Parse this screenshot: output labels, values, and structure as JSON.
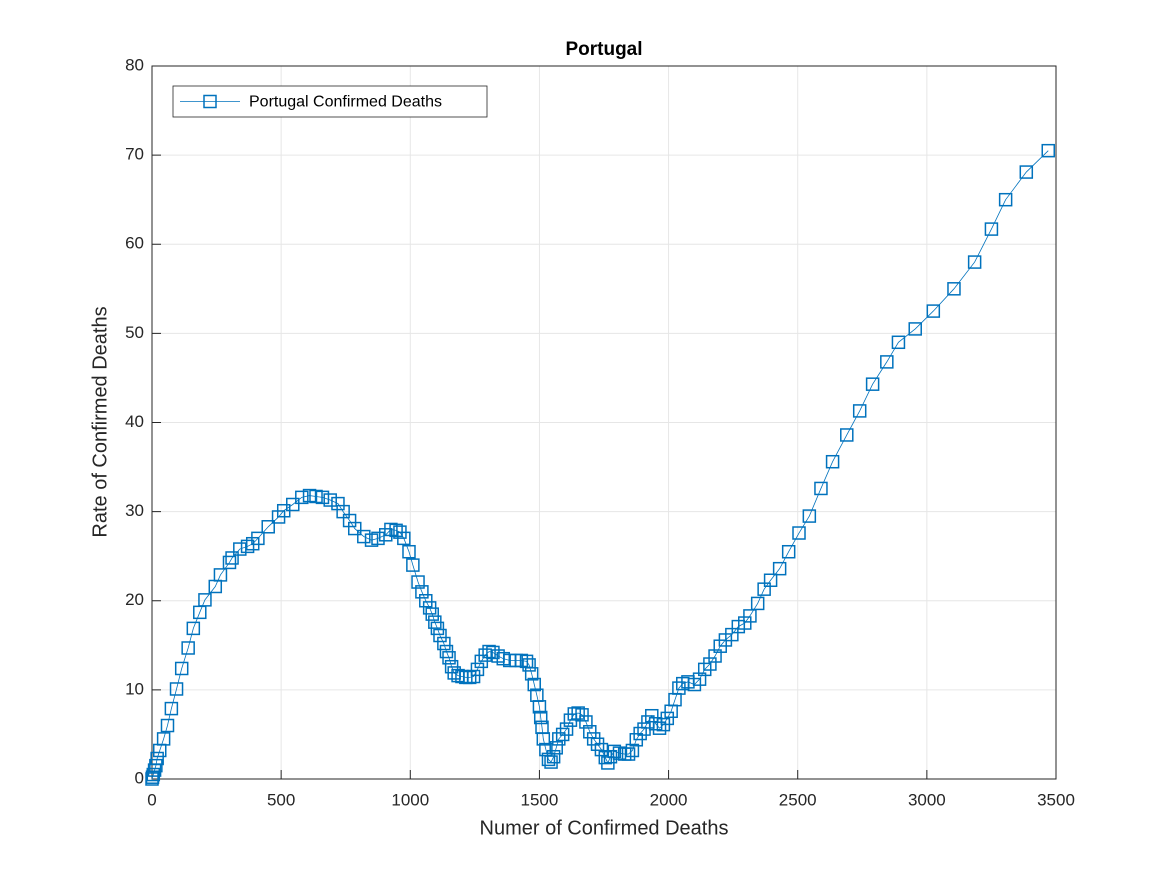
{
  "chart_data": {
    "type": "line",
    "title": "Portugal",
    "xlabel": "Numer of Confirmed Deaths",
    "ylabel": "Rate of Confirmed Deaths",
    "x": [
      0,
      2,
      5,
      10,
      15,
      20,
      30,
      45,
      60,
      75,
      95,
      115,
      140,
      160,
      185,
      205,
      245,
      265,
      300,
      310,
      340,
      370,
      390,
      410,
      450,
      490,
      510,
      545,
      580,
      610,
      635,
      660,
      690,
      720,
      740,
      765,
      785,
      820,
      850,
      875,
      905,
      925,
      945,
      960,
      975,
      995,
      1010,
      1030,
      1045,
      1060,
      1075,
      1085,
      1095,
      1105,
      1115,
      1130,
      1140,
      1150,
      1160,
      1170,
      1185,
      1200,
      1215,
      1230,
      1245,
      1260,
      1275,
      1290,
      1305,
      1320,
      1340,
      1360,
      1385,
      1410,
      1430,
      1450,
      1460,
      1470,
      1480,
      1490,
      1500,
      1505,
      1510,
      1515,
      1525,
      1535,
      1545,
      1555,
      1565,
      1575,
      1590,
      1605,
      1620,
      1635,
      1650,
      1665,
      1680,
      1695,
      1710,
      1725,
      1740,
      1755,
      1765,
      1775,
      1790,
      1810,
      1830,
      1845,
      1860,
      1875,
      1890,
      1905,
      1920,
      1935,
      1950,
      1965,
      1980,
      1995,
      2010,
      2025,
      2040,
      2055,
      2075,
      2100,
      2120,
      2140,
      2160,
      2180,
      2200,
      2220,
      2245,
      2270,
      2295,
      2315,
      2345,
      2370,
      2395,
      2430,
      2465,
      2505,
      2545,
      2590,
      2635,
      2690,
      2740,
      2790,
      2845,
      2890,
      2955,
      3025,
      3105,
      3185,
      3250,
      3305,
      3385,
      3470
    ],
    "series": [
      {
        "name": "Portugal Confirmed Deaths",
        "color": "#0072bd",
        "values": [
          0,
          0.2,
          0.5,
          1,
          1.5,
          2.3,
          3.2,
          4.5,
          6,
          7.9,
          10.1,
          12.4,
          14.7,
          16.9,
          18.7,
          20.1,
          21.6,
          22.9,
          24.3,
          24.8,
          25.8,
          26.1,
          26.4,
          27,
          28.3,
          29.4,
          30.1,
          30.8,
          31.6,
          31.8,
          31.7,
          31.6,
          31.3,
          30.9,
          30,
          29,
          28.1,
          27.2,
          26.8,
          27,
          27.4,
          28,
          27.9,
          27.7,
          27,
          25.5,
          24,
          22.1,
          21,
          20,
          19.2,
          18.5,
          17.6,
          16.9,
          16.1,
          15.2,
          14.3,
          13.6,
          12.6,
          11.9,
          11.6,
          11.5,
          11.4,
          11.4,
          11.5,
          12.3,
          13.2,
          13.9,
          14.3,
          14.2,
          13.8,
          13.5,
          13.3,
          13.3,
          13.3,
          13.2,
          12.8,
          11.8,
          10.6,
          9.4,
          8.1,
          6.9,
          5.8,
          4.5,
          3.3,
          2.2,
          1.9,
          2.5,
          3.5,
          4.5,
          5,
          5.6,
          6.6,
          7.3,
          7.4,
          7.2,
          6.4,
          5.3,
          4.5,
          3.9,
          3.3,
          2.4,
          1.8,
          2.5,
          3.1,
          2.9,
          2.8,
          2.8,
          3.2,
          4.4,
          5.1,
          5.6,
          6.4,
          7.1,
          6.2,
          5.7,
          6.1,
          6.8,
          7.6,
          8.9,
          10.2,
          10.7,
          10.9,
          10.6,
          11.2,
          12.3,
          12.9,
          13.8,
          14.9,
          15.6,
          16.2,
          17.1,
          17.5,
          18.3,
          19.7,
          21.3,
          22.3,
          23.6,
          25.5,
          27.6,
          29.5,
          32.6,
          35.6,
          38.6,
          41.3,
          44.3,
          46.8,
          49,
          50.5,
          52.5,
          55,
          58,
          61.7,
          65,
          68.1,
          70.5
        ]
      }
    ],
    "xlim": [
      0,
      3500
    ],
    "xticks": [
      0,
      500,
      1000,
      1500,
      2000,
      2500,
      3000,
      3500
    ],
    "ylim": [
      0,
      80
    ],
    "yticks": [
      0,
      10,
      20,
      30,
      40,
      50,
      60,
      70,
      80
    ],
    "grid": true,
    "legend": "northwest",
    "marker": "square"
  }
}
